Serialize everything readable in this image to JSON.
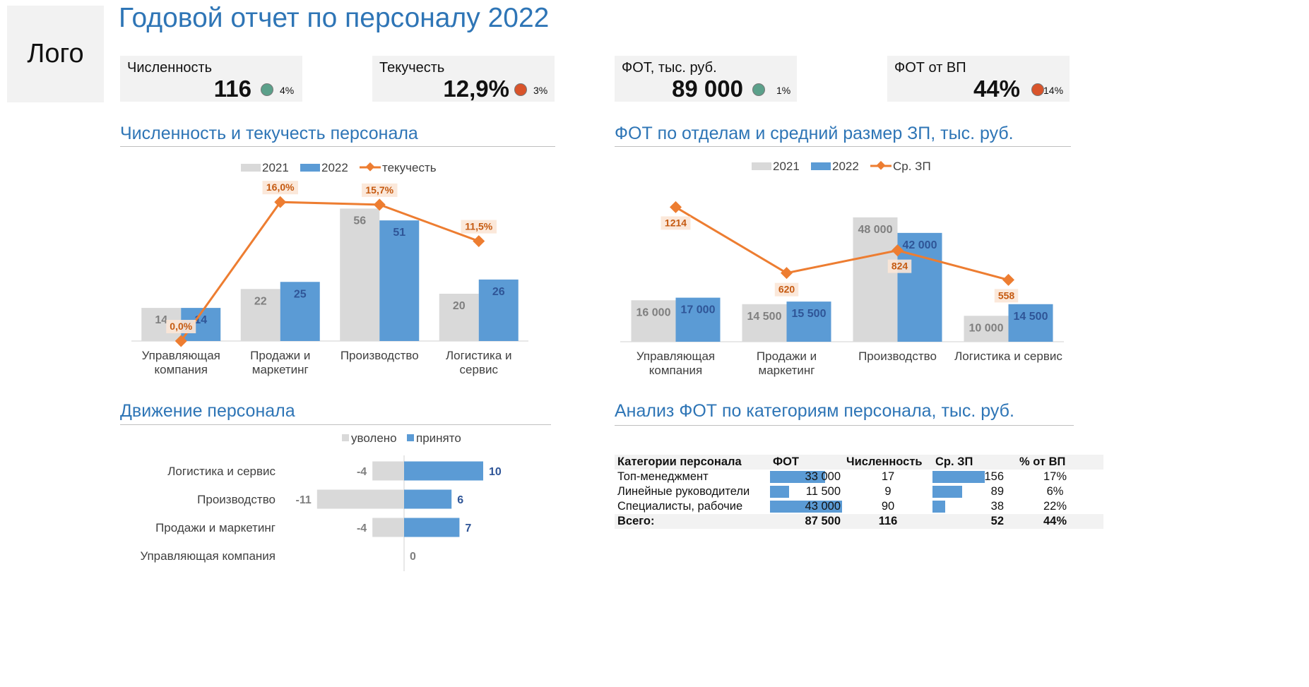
{
  "logo": "Лого",
  "title": "Годовой отчет по персоналу 2022",
  "colors": {
    "accent": "#2e75b6",
    "bar2021": "#d9d9d9",
    "bar2022": "#5b9bd5",
    "line": "#ed7d31",
    "good": "#5ba08a",
    "bad": "#d9542b"
  },
  "kpis": [
    {
      "label": "Численность",
      "value": "116",
      "status": "good",
      "change": "4%"
    },
    {
      "label": "Текучесть",
      "value": "12,9%",
      "status": "bad",
      "change": "3%"
    },
    {
      "label": "ФОТ, тыс. руб.",
      "value": "89 000",
      "status": "good",
      "change": "1%"
    },
    {
      "label": "ФОТ от ВП",
      "value": "44%",
      "status": "bad",
      "change": "14%"
    }
  ],
  "sections": {
    "headcount": "Численность и текучесть персонала",
    "payroll": "ФОТ по отделам и средний размер ЗП, тыс. руб.",
    "movement": "Движение персонала",
    "analysis": "Анализ ФОТ по категориям персонала, тыс. руб."
  },
  "chart_data": [
    {
      "type": "bar",
      "categories": [
        "Управляющая компания",
        "Продажи и маркетинг",
        "Производство",
        "Логистика и сервис"
      ],
      "category_lines": [
        [
          "Управляющая",
          "компания"
        ],
        [
          "Продажи и",
          "маркетинг"
        ],
        [
          "Производство"
        ],
        [
          "Логистика и",
          "сервис"
        ]
      ],
      "series": [
        {
          "name": "2021",
          "values": [
            14,
            22,
            56,
            20
          ],
          "labels": [
            "14",
            "22",
            "56",
            "20"
          ]
        },
        {
          "name": "2022",
          "values": [
            14,
            25,
            51,
            26
          ],
          "labels": [
            "14",
            "25",
            "51",
            "26"
          ]
        }
      ],
      "line": {
        "name": "текучесть",
        "values": [
          0.0,
          16.0,
          15.7,
          11.5
        ],
        "labels": [
          "0,0%",
          "16,0%",
          "15,7%",
          "11,5%"
        ]
      },
      "legend": "top"
    },
    {
      "type": "bar",
      "categories": [
        "Управляющая компания",
        "Продажи и маркетинг",
        "Производство",
        "Логистика и сервис"
      ],
      "category_lines": [
        [
          "Управляющая",
          "компания"
        ],
        [
          "Продажи и",
          "маркетинг"
        ],
        [
          "Производство"
        ],
        [
          "Логистика и сервис"
        ]
      ],
      "series": [
        {
          "name": "2021",
          "values": [
            16000,
            14500,
            48000,
            10000
          ],
          "labels": [
            "16 000",
            "14 500",
            "48 000",
            "10 000"
          ]
        },
        {
          "name": "2022",
          "values": [
            17000,
            15500,
            42000,
            14500
          ],
          "labels": [
            "17 000",
            "15 500",
            "42 000",
            "14 500"
          ]
        }
      ],
      "line": {
        "name": "Ср. ЗП",
        "values": [
          1214,
          620,
          824,
          558
        ],
        "labels": [
          "1214",
          "620",
          "824",
          "558"
        ]
      },
      "legend": "top"
    },
    {
      "type": "bar",
      "orientation": "horizontal",
      "categories": [
        "Логистика и сервис",
        "Производство",
        "Продажи и маркетинг",
        "Управляющая компания"
      ],
      "series": [
        {
          "name": "уволено",
          "values": [
            -4,
            -11,
            -4,
            0
          ],
          "labels": [
            "-4",
            "-11",
            "-4",
            ""
          ]
        },
        {
          "name": "принято",
          "values": [
            10,
            6,
            7,
            0
          ],
          "labels": [
            "10",
            "6",
            "7",
            "0"
          ]
        }
      ],
      "legend": "top"
    },
    {
      "type": "table",
      "columns": [
        "Категории персонала",
        "ФОТ",
        "Численность",
        "Ср. ЗП",
        "% от ВП"
      ],
      "rows": [
        {
          "category": "Топ-менеджмент",
          "fot": 33000,
          "fot_label": "33 000",
          "count": "17",
          "avg": 156,
          "avg_label": "156",
          "pct": "17%"
        },
        {
          "category": "Линейные руководители",
          "fot": 11500,
          "fot_label": "11 500",
          "count": "9",
          "avg": 89,
          "avg_label": "89",
          "pct": "6%"
        },
        {
          "category": "Специалисты, рабочие",
          "fot": 43000,
          "fot_label": "43 000",
          "count": "90",
          "avg": 38,
          "avg_label": "38",
          "pct": "22%"
        }
      ],
      "total": {
        "category": "Всего:",
        "fot": "87 500",
        "count": "116",
        "avg": "52",
        "pct": "44%"
      }
    }
  ]
}
